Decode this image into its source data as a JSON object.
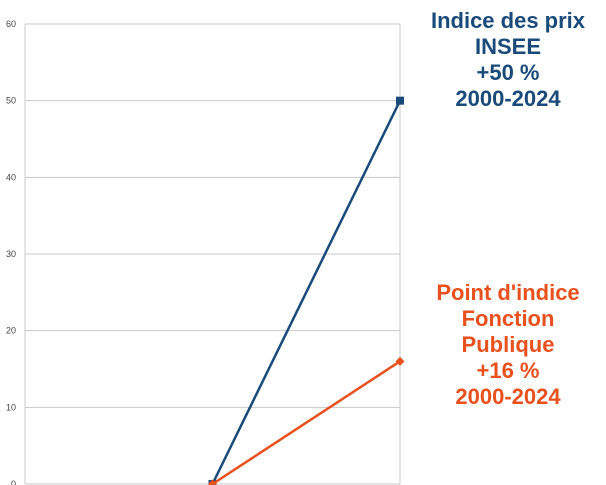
{
  "chart_data": {
    "type": "line",
    "x": [
      0,
      1,
      2
    ],
    "ylim": [
      0,
      60
    ],
    "yticks": [
      0,
      10,
      20,
      30,
      40,
      50,
      60
    ],
    "grid": true,
    "legend": "right",
    "series": [
      {
        "values": [
          null,
          0,
          50
        ],
        "color": "#1a4a7a",
        "marker": "square",
        "annotation": [
          "Indice des prix",
          "INSEE",
          "+50 %",
          "2000-2024"
        ]
      },
      {
        "values": [
          null,
          0,
          16
        ],
        "color": "#e8501e",
        "marker": "diamond",
        "annotation": [
          "Point d'indice",
          "Fonction",
          "Publique",
          "+16 %",
          "2000-2024"
        ]
      }
    ]
  }
}
